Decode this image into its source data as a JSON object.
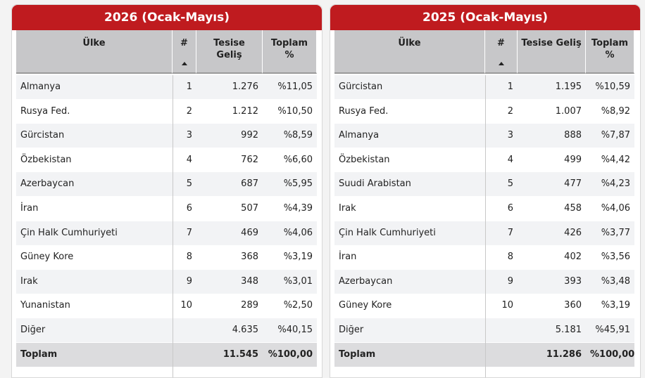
{
  "panels": [
    {
      "title": "2026 (Ocak-Mayıs)",
      "columns": [
        "Ülke",
        "#",
        "Tesise Geliş",
        "Toplam %"
      ],
      "rows": [
        {
          "country": "Almanya",
          "rank": "1",
          "arrivals": "1.276",
          "share": "%11,05"
        },
        {
          "country": "Rusya Fed.",
          "rank": "2",
          "arrivals": "1.212",
          "share": "%10,50"
        },
        {
          "country": "Gürcistan",
          "rank": "3",
          "arrivals": "992",
          "share": "%8,59"
        },
        {
          "country": "Özbekistan",
          "rank": "4",
          "arrivals": "762",
          "share": "%6,60"
        },
        {
          "country": "Azerbaycan",
          "rank": "5",
          "arrivals": "687",
          "share": "%5,95"
        },
        {
          "country": "İran",
          "rank": "6",
          "arrivals": "507",
          "share": "%4,39"
        },
        {
          "country": "Çin Halk Cumhuriyeti",
          "rank": "7",
          "arrivals": "469",
          "share": "%4,06"
        },
        {
          "country": "Güney Kore",
          "rank": "8",
          "arrivals": "368",
          "share": "%3,19"
        },
        {
          "country": "Irak",
          "rank": "9",
          "arrivals": "348",
          "share": "%3,01"
        },
        {
          "country": "Yunanistan",
          "rank": "10",
          "arrivals": "289",
          "share": "%2,50"
        },
        {
          "country": "Diğer",
          "arrivals": "4.635",
          "share": "%40,15"
        }
      ],
      "total": {
        "country": "Toplam",
        "arrivals": "11.545",
        "share": "%100,00"
      }
    },
    {
      "title": "2025 (Ocak-Mayıs)",
      "columns": [
        "Ülke",
        "#",
        "Tesise Geliş",
        "Toplam %"
      ],
      "rows": [
        {
          "country": "Gürcistan",
          "rank": "1",
          "arrivals": "1.195",
          "share": "%10,59"
        },
        {
          "country": "Rusya Fed.",
          "rank": "2",
          "arrivals": "1.007",
          "share": "%8,92"
        },
        {
          "country": "Almanya",
          "rank": "3",
          "arrivals": "888",
          "share": "%7,87"
        },
        {
          "country": "Özbekistan",
          "rank": "4",
          "arrivals": "499",
          "share": "%4,42"
        },
        {
          "country": "Suudi Arabistan",
          "rank": "5",
          "arrivals": "477",
          "share": "%4,23"
        },
        {
          "country": "Irak",
          "rank": "6",
          "arrivals": "458",
          "share": "%4,06"
        },
        {
          "country": "Çin Halk Cumhuriyeti",
          "rank": "7",
          "arrivals": "426",
          "share": "%3,77"
        },
        {
          "country": "İran",
          "rank": "8",
          "arrivals": "402",
          "share": "%3,56"
        },
        {
          "country": "Azerbaycan",
          "rank": "9",
          "arrivals": "393",
          "share": "%3,48"
        },
        {
          "country": "Güney Kore",
          "rank": "10",
          "arrivals": "360",
          "share": "%3,19"
        },
        {
          "country": "Diğer",
          "arrivals": "5.181",
          "share": "%45,91"
        }
      ],
      "total": {
        "country": "Toplam",
        "arrivals": "11.286",
        "share": "%100,00"
      }
    }
  ]
}
